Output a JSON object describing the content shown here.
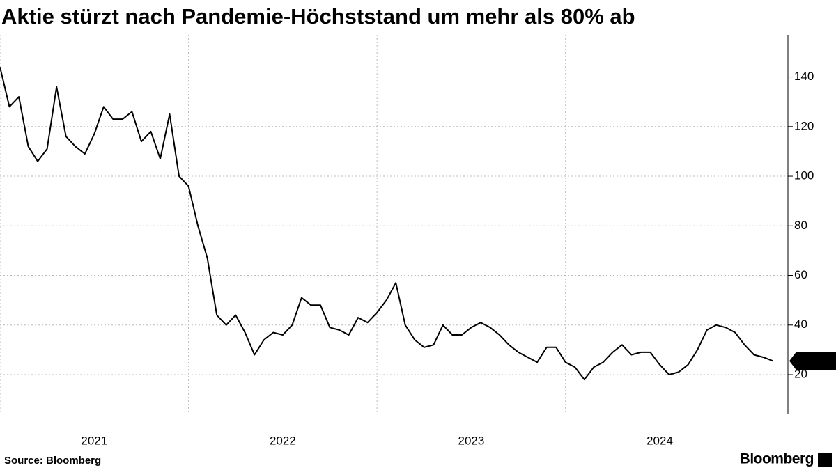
{
  "chart_data": {
    "type": "line",
    "title": "Aktie stürzt nach Pandemie-Höchststand um mehr als 80% ab",
    "source": "Source: Bloomberg",
    "brand": "Bloomberg",
    "x": [
      2021,
      2021.05,
      2021.1,
      2021.15,
      2021.2,
      2021.25,
      2021.3,
      2021.35,
      2021.4,
      2021.45,
      2021.5,
      2021.55,
      2021.6,
      2021.65,
      2021.7,
      2021.75,
      2021.8,
      2021.85,
      2021.9,
      2021.95,
      2022,
      2022.05,
      2022.1,
      2022.15,
      2022.2,
      2022.25,
      2022.3,
      2022.35,
      2022.4,
      2022.45,
      2022.5,
      2022.55,
      2022.6,
      2022.65,
      2022.7,
      2022.75,
      2022.8,
      2022.85,
      2022.9,
      2022.95,
      2023,
      2023.05,
      2023.1,
      2023.15,
      2023.2,
      2023.25,
      2023.3,
      2023.35,
      2023.4,
      2023.45,
      2023.5,
      2023.55,
      2023.6,
      2023.65,
      2023.7,
      2023.75,
      2023.8,
      2023.85,
      2023.9,
      2023.95,
      2024,
      2024.05,
      2024.1,
      2024.15,
      2024.2,
      2024.25,
      2024.3,
      2024.35,
      2024.4,
      2024.45,
      2024.5,
      2024.55,
      2024.6,
      2024.65,
      2024.7,
      2024.75,
      2024.8,
      2024.85,
      2024.9,
      2024.95,
      2025,
      2025.05,
      2025.1
    ],
    "values": [
      144,
      128,
      132,
      112,
      106,
      111,
      136,
      116,
      112,
      109,
      117,
      128,
      123,
      123,
      126,
      114,
      118,
      107,
      125,
      100,
      96,
      80,
      67,
      44,
      40,
      44,
      37,
      28,
      34,
      37,
      36,
      40,
      51,
      48,
      48,
      39,
      38,
      36,
      43,
      41,
      45,
      50,
      57,
      40,
      34,
      31,
      32,
      40,
      36,
      36,
      39,
      41,
      39,
      36,
      32,
      29,
      27,
      25,
      31,
      31,
      25,
      23,
      18,
      23,
      25,
      29,
      32,
      28,
      29,
      29,
      24,
      20,
      21,
      24,
      30,
      38,
      40,
      39,
      37,
      32,
      28,
      27,
      25.52
    ],
    "color": "#000000",
    "xlim": [
      2021,
      2025.18
    ],
    "xticks": [
      2021,
      2022,
      2023,
      2024
    ],
    "ylim": [
      4,
      157
    ],
    "yticks": [
      20,
      40,
      60,
      80,
      100,
      120,
      140
    ],
    "grid": true
  }
}
